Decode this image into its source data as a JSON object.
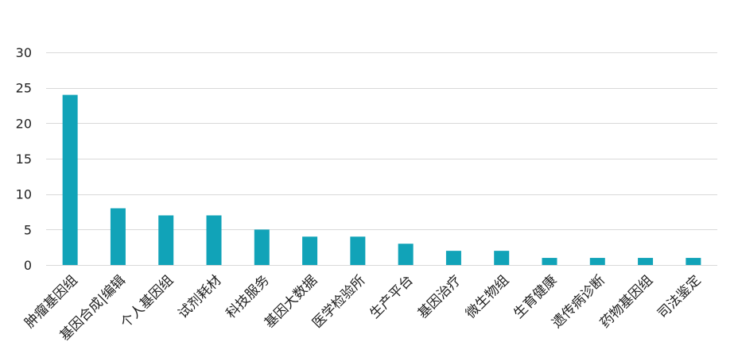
{
  "chart_data": {
    "type": "bar",
    "categories": [
      "肿瘤基因组",
      "基因合成|编辑",
      "个人基因组",
      "试剂耗材",
      "科技服务",
      "基因大数据",
      "医学检验所",
      "生产平台",
      "基因治疗",
      "微生物组",
      "生育健康",
      "遗传病诊断",
      "药物基因组",
      "司法鉴定"
    ],
    "values": [
      24,
      8,
      7,
      7,
      5,
      4,
      4,
      3,
      2,
      2,
      1,
      1,
      1,
      1
    ],
    "ylim": [
      0,
      30
    ],
    "yticks": [
      0,
      5,
      10,
      15,
      20,
      25,
      30
    ],
    "grid": true,
    "legend": "none",
    "bar_color": "#11a3b8",
    "grid_color": "#d9d9d9"
  }
}
